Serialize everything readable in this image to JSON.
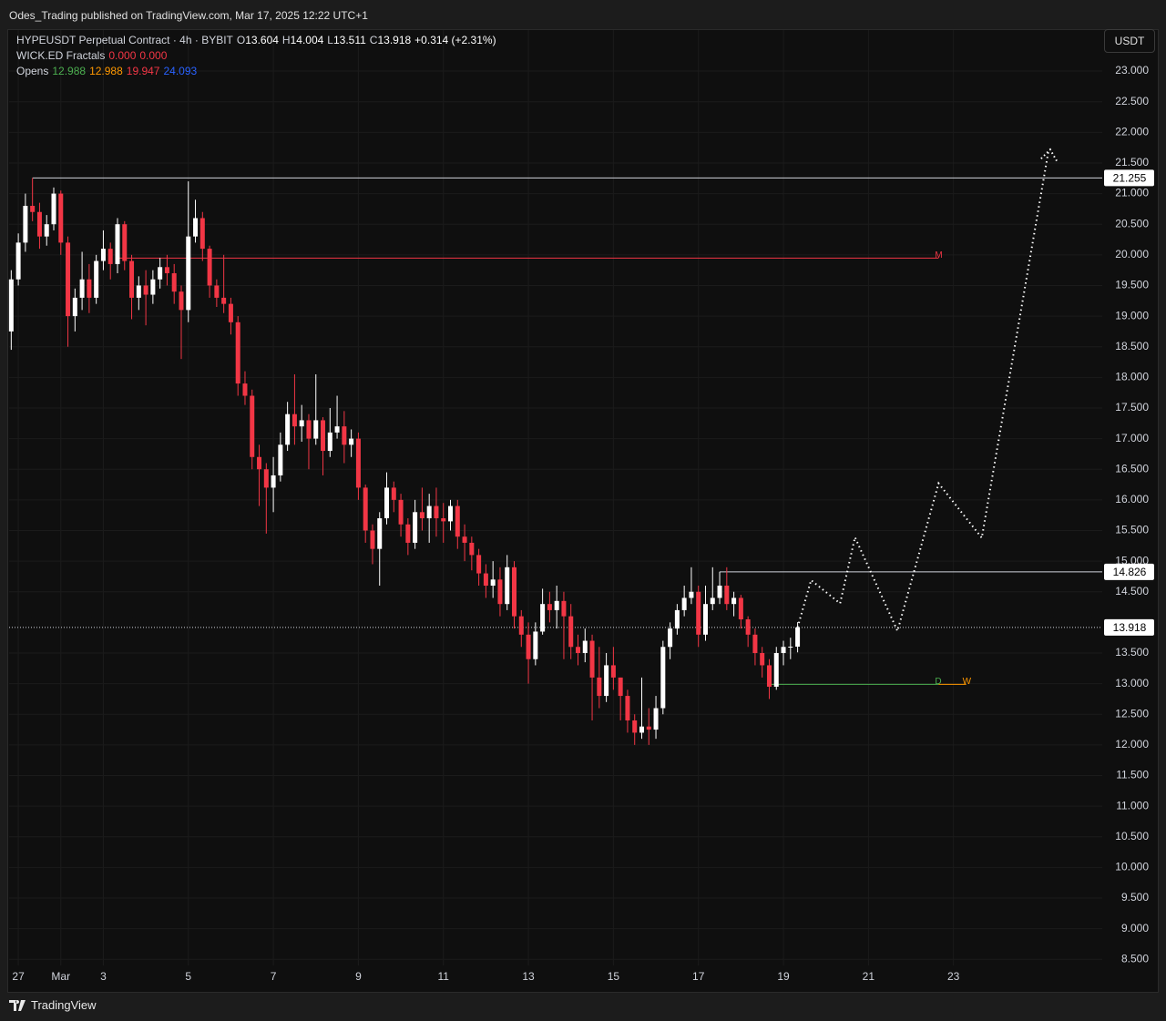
{
  "header": {
    "publisher": "Odes_Trading published on TradingView.com, Mar 17, 2025 12:22 UTC+1"
  },
  "legend": {
    "symbol": "HYPEUSDT Perpetual Contract · 4h · BYBIT",
    "ohlc": [
      {
        "label": "O",
        "value": 13.604
      },
      {
        "label": "H",
        "value": 14.004
      },
      {
        "label": "L",
        "value": 13.511
      },
      {
        "label": "C",
        "value": 13.918
      }
    ],
    "change": "+0.314 (+2.31%)",
    "indicators": [
      {
        "name": "WICK.ED Fractals",
        "values": [
          {
            "value": "0.000",
            "color": "#f23645"
          },
          {
            "value": "0.000",
            "color": "#f23645"
          }
        ]
      },
      {
        "name": "Opens",
        "values": [
          {
            "value": 12.988,
            "color": "#4caf50"
          },
          {
            "value": 12.988,
            "color": "#ff9800"
          },
          {
            "value": 19.947,
            "color": "#f23645"
          },
          {
            "value": 24.093,
            "color": "#2962ff"
          }
        ]
      }
    ]
  },
  "currency": "USDT",
  "footer": {
    "brand": "TradingView"
  },
  "chart_data": {
    "type": "candlestick",
    "xlim": [
      -0.3,
      154
    ],
    "ylim": [
      8.4,
      23.67
    ],
    "xticks": [
      {
        "value": 1,
        "label": "27"
      },
      {
        "value": 7,
        "label": "Mar"
      },
      {
        "value": 13,
        "label": "3"
      },
      {
        "value": 25,
        "label": "5"
      },
      {
        "value": 37,
        "label": "7"
      },
      {
        "value": 49,
        "label": "9"
      },
      {
        "value": 61,
        "label": "11"
      },
      {
        "value": 73,
        "label": "13"
      },
      {
        "value": 85,
        "label": "15"
      },
      {
        "value": 97,
        "label": "17"
      },
      {
        "value": 109,
        "label": "19"
      },
      {
        "value": 121,
        "label": "21"
      },
      {
        "value": 133,
        "label": "23"
      }
    ],
    "yticks": [
      {
        "value": 8.5,
        "label": "8.500"
      },
      {
        "value": 9,
        "label": "9.000"
      },
      {
        "value": 9.5,
        "label": "9.500"
      },
      {
        "value": 10,
        "label": "10.000"
      },
      {
        "value": 10.5,
        "label": "10.500"
      },
      {
        "value": 11,
        "label": "11.000"
      },
      {
        "value": 11.5,
        "label": "11.500"
      },
      {
        "value": 12,
        "label": "12.000"
      },
      {
        "value": 12.5,
        "label": "12.500"
      },
      {
        "value": 13,
        "label": "13.000"
      },
      {
        "value": 13.5,
        "label": "13.500"
      },
      {
        "value": 14.5,
        "label": "14.500"
      },
      {
        "value": 15,
        "label": "15.000"
      },
      {
        "value": 15.5,
        "label": "15.500"
      },
      {
        "value": 16,
        "label": "16.000"
      },
      {
        "value": 16.5,
        "label": "16.500"
      },
      {
        "value": 17,
        "label": "17.000"
      },
      {
        "value": 17.5,
        "label": "17.500"
      },
      {
        "value": 18,
        "label": "18.000"
      },
      {
        "value": 18.5,
        "label": "18.500"
      },
      {
        "value": 19,
        "label": "19.000"
      },
      {
        "value": 19.5,
        "label": "19.500"
      },
      {
        "value": 20,
        "label": "20.000"
      },
      {
        "value": 20.5,
        "label": "20.500"
      },
      {
        "value": 21,
        "label": "21.000"
      },
      {
        "value": 21.5,
        "label": "21.500"
      },
      {
        "value": 22,
        "label": "22.000"
      },
      {
        "value": 22.5,
        "label": "22.500"
      },
      {
        "value": 23,
        "label": "23.000"
      }
    ],
    "grid": true,
    "up_color": "#ffffff",
    "down_color": "#f23645",
    "open": [
      18.75,
      19.6,
      20.2,
      20.8,
      20.7,
      20.3,
      20.5,
      21.0,
      20.2,
      19.0,
      19.3,
      19.6,
      19.3,
      19.9,
      20.1,
      19.85,
      20.5,
      19.9,
      19.3,
      19.5,
      19.35,
      19.6,
      19.8,
      19.7,
      19.4,
      19.1,
      20.3,
      20.6,
      20.1,
      19.5,
      19.3,
      19.2,
      18.9,
      17.9,
      17.7,
      16.7,
      16.5,
      16.2,
      16.4,
      16.9,
      17.4,
      17.2,
      17.3,
      17.0,
      17.3,
      16.8,
      17.1,
      17.2,
      16.9,
      17.0,
      16.2,
      15.5,
      15.2,
      15.7,
      16.2,
      16.0,
      15.6,
      15.3,
      15.8,
      15.7,
      15.9,
      15.7,
      15.65,
      15.9,
      15.4,
      15.3,
      15.1,
      14.8,
      14.6,
      14.7,
      14.3,
      14.9,
      14.1,
      13.8,
      13.4,
      13.85,
      14.3,
      14.2,
      14.35,
      14.1,
      13.6,
      13.5,
      13.7,
      13.1,
      12.8,
      13.3,
      13.1,
      12.8,
      12.4,
      12.2,
      12.3,
      12.25,
      12.6,
      13.6,
      13.9,
      14.2,
      14.4,
      14.5,
      13.8,
      14.3,
      14.4,
      14.6,
      14.3,
      14.4,
      14.05,
      13.8,
      13.5,
      13.3,
      12.95,
      13.5,
      13.6,
      13.604
    ],
    "high": [
      19.75,
      20.35,
      21.0,
      21.255,
      20.85,
      20.65,
      21.1,
      21.05,
      20.3,
      19.45,
      20.05,
      19.85,
      20.0,
      20.4,
      20.2,
      20.6,
      20.55,
      20.0,
      19.65,
      19.75,
      19.75,
      19.95,
      20.0,
      19.85,
      19.5,
      21.2,
      20.9,
      20.7,
      20.15,
      19.6,
      20.0,
      19.3,
      19.0,
      18.1,
      17.8,
      16.9,
      16.6,
      16.7,
      17.1,
      17.6,
      18.05,
      17.55,
      17.4,
      18.05,
      17.35,
      17.5,
      17.7,
      17.45,
      17.15,
      17.1,
      16.25,
      15.6,
      15.8,
      16.45,
      16.3,
      16.1,
      15.7,
      16.0,
      16.2,
      16.1,
      16.2,
      15.95,
      16.0,
      16.0,
      15.6,
      15.4,
      15.2,
      14.95,
      15.0,
      14.9,
      15.1,
      15.0,
      14.2,
      14.0,
      14.0,
      14.55,
      14.5,
      14.6,
      14.5,
      14.3,
      13.8,
      13.9,
      13.8,
      13.6,
      13.5,
      13.6,
      13.1,
      12.9,
      12.5,
      13.1,
      12.6,
      12.8,
      13.7,
      14.0,
      14.3,
      14.6,
      14.9,
      14.6,
      14.6,
      14.9,
      14.826,
      14.9,
      14.5,
      14.45,
      14.1,
      13.9,
      13.6,
      13.4,
      13.6,
      13.7,
      13.75,
      14.004
    ],
    "low": [
      18.45,
      19.5,
      20.05,
      20.55,
      20.1,
      20.15,
      20.4,
      20.0,
      18.5,
      18.75,
      19.1,
      19.05,
      19.2,
      19.75,
      19.6,
      19.7,
      19.75,
      18.95,
      19.1,
      18.85,
      19.2,
      19.45,
      19.5,
      19.2,
      18.3,
      18.9,
      20.2,
      19.9,
      19.3,
      19.15,
      19.05,
      18.7,
      17.7,
      17.55,
      16.5,
      15.9,
      15.45,
      15.8,
      16.3,
      16.8,
      16.9,
      16.95,
      16.5,
      16.9,
      16.4,
      16.7,
      17.0,
      16.6,
      16.7,
      16.0,
      15.3,
      14.95,
      14.6,
      15.6,
      15.8,
      15.4,
      15.1,
      15.2,
      15.5,
      15.3,
      15.4,
      15.3,
      15.5,
      15.2,
      15.0,
      14.85,
      14.6,
      14.4,
      14.4,
      14.1,
      14.2,
      13.9,
      13.6,
      13.0,
      13.3,
      13.8,
      14.0,
      13.9,
      13.4,
      13.4,
      13.3,
      13.35,
      12.4,
      12.6,
      12.7,
      12.9,
      12.4,
      12.2,
      12.0,
      12.1,
      12.0,
      12.1,
      12.5,
      13.4,
      13.8,
      14.1,
      14.3,
      13.6,
      13.7,
      14.2,
      14.3,
      14.2,
      14.1,
      13.9,
      13.6,
      13.3,
      13.1,
      12.75,
      12.9,
      13.3,
      13.4,
      13.511
    ],
    "close": [
      19.6,
      20.2,
      20.8,
      20.7,
      20.3,
      20.5,
      21.0,
      20.2,
      19.0,
      19.3,
      19.6,
      19.3,
      19.9,
      20.1,
      19.85,
      20.5,
      19.9,
      19.3,
      19.5,
      19.35,
      19.6,
      19.8,
      19.7,
      19.4,
      19.1,
      20.3,
      20.6,
      20.1,
      19.5,
      19.3,
      19.2,
      18.9,
      17.9,
      17.7,
      16.7,
      16.5,
      16.2,
      16.4,
      16.9,
      17.4,
      17.2,
      17.3,
      17.0,
      17.3,
      16.8,
      17.1,
      17.2,
      16.9,
      17.0,
      16.2,
      15.5,
      15.2,
      15.7,
      16.2,
      16.0,
      15.6,
      15.3,
      15.8,
      15.7,
      15.9,
      15.7,
      15.65,
      15.9,
      15.4,
      15.3,
      15.1,
      14.8,
      14.6,
      14.7,
      14.3,
      14.9,
      14.1,
      13.8,
      13.4,
      13.85,
      14.3,
      14.2,
      14.35,
      14.1,
      13.6,
      13.5,
      13.7,
      13.1,
      12.8,
      13.3,
      13.1,
      12.8,
      12.4,
      12.2,
      12.3,
      12.25,
      12.6,
      13.6,
      13.9,
      14.2,
      14.4,
      14.5,
      13.8,
      14.3,
      14.4,
      14.6,
      14.3,
      14.4,
      14.05,
      13.8,
      13.5,
      13.3,
      12.95,
      13.5,
      13.6,
      13.604,
      13.918
    ],
    "levels": [
      {
        "value": 21.255,
        "color": "#d1d4dc",
        "start": 3,
        "end": 154
      },
      {
        "value": 14.826,
        "color": "#d1d4dc",
        "start": 100,
        "end": 154
      },
      {
        "value": 19.947,
        "color": "#f23645",
        "start": 15,
        "end": 130.9,
        "tag": "M"
      },
      {
        "value": 12.988,
        "color": "#4caf50",
        "start": 107,
        "end": 130.9,
        "tag": "D"
      },
      {
        "value": 12.988,
        "color": "#ff9800",
        "start": 130.9,
        "end": 134.8,
        "tag": "W"
      }
    ],
    "last_price": 13.918,
    "price_tags": [
      21.255,
      14.826,
      13.918
    ],
    "projection": {
      "x": [
        111,
        112.9,
        117,
        119.1,
        125.1,
        130.9,
        137,
        146.4
      ],
      "values": [
        13.918,
        14.69,
        14.31,
        15.39,
        13.86,
        16.27,
        15.38,
        21.69
      ]
    }
  }
}
